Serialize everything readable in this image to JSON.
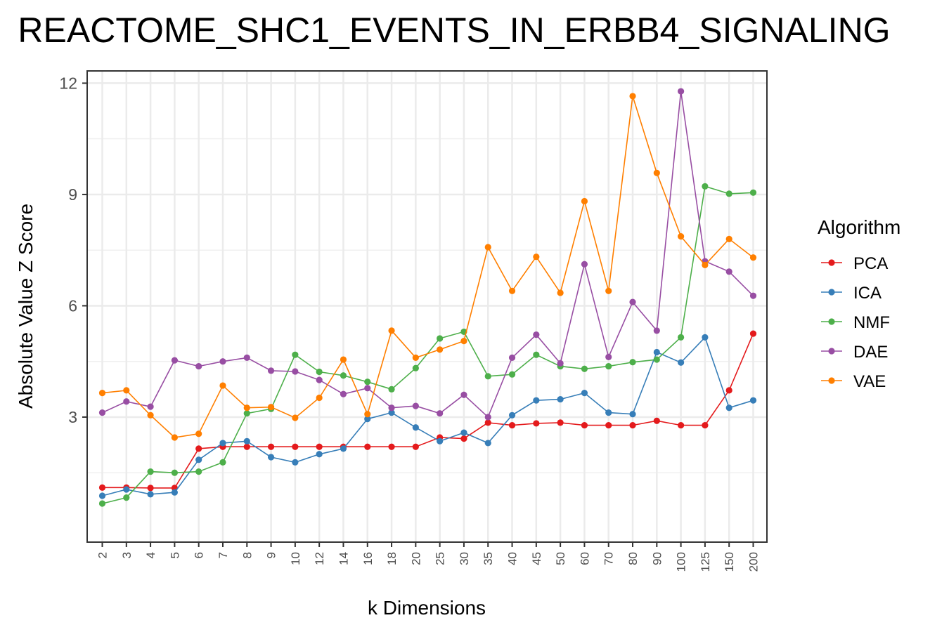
{
  "chart_data": {
    "type": "line",
    "title": "REACTOME_SHC1_EVENTS_IN_ERBB4_SIGNALING",
    "xlabel": "k Dimensions",
    "ylabel": "Absolute Value Z Score",
    "categories": [
      "2",
      "3",
      "4",
      "5",
      "6",
      "7",
      "8",
      "9",
      "10",
      "12",
      "14",
      "16",
      "18",
      "20",
      "25",
      "30",
      "35",
      "40",
      "45",
      "50",
      "60",
      "70",
      "80",
      "90",
      "100",
      "125",
      "150",
      "200"
    ],
    "ylim": [
      0,
      12.3
    ],
    "yticks": [
      3,
      6,
      9,
      12
    ],
    "grid": true,
    "legend": {
      "title": "Algorithm",
      "position": "right"
    },
    "series": [
      {
        "name": "PCA",
        "color": "#e41a1c",
        "values": [
          1.1,
          1.1,
          1.09,
          1.09,
          2.15,
          2.2,
          2.2,
          2.2,
          2.2,
          2.2,
          2.2,
          2.2,
          2.2,
          2.2,
          2.45,
          2.42,
          2.85,
          2.78,
          2.83,
          2.85,
          2.78,
          2.78,
          2.78,
          2.9,
          2.78,
          2.78,
          3.72,
          5.25
        ]
      },
      {
        "name": "ICA",
        "color": "#377eb8",
        "values": [
          0.88,
          1.05,
          0.92,
          0.97,
          1.85,
          2.3,
          2.35,
          1.92,
          1.78,
          2.0,
          2.15,
          2.95,
          3.12,
          2.72,
          2.35,
          2.58,
          2.3,
          3.05,
          3.45,
          3.48,
          3.65,
          3.12,
          3.08,
          4.75,
          4.47,
          5.15,
          3.25,
          3.45
        ]
      },
      {
        "name": "NMF",
        "color": "#4daf4a",
        "values": [
          0.67,
          0.83,
          1.53,
          1.5,
          1.53,
          1.78,
          3.1,
          3.22,
          4.68,
          4.22,
          4.12,
          3.95,
          3.75,
          4.32,
          5.12,
          5.3,
          4.1,
          4.15,
          4.68,
          4.37,
          4.3,
          4.37,
          4.48,
          4.55,
          5.15,
          9.22,
          9.02,
          9.05
        ]
      },
      {
        "name": "DAE",
        "color": "#984ea3",
        "values": [
          3.12,
          3.42,
          3.28,
          4.53,
          4.37,
          4.5,
          4.6,
          4.25,
          4.23,
          4.0,
          3.62,
          3.78,
          3.25,
          3.3,
          3.1,
          3.6,
          3.0,
          4.6,
          5.22,
          4.45,
          7.12,
          4.62,
          6.1,
          5.33,
          11.78,
          7.2,
          6.92,
          6.27
        ]
      },
      {
        "name": "VAE",
        "color": "#ff7f00",
        "values": [
          3.65,
          3.72,
          3.05,
          2.45,
          2.55,
          3.85,
          3.25,
          3.27,
          2.98,
          3.52,
          4.55,
          3.08,
          5.33,
          4.6,
          4.82,
          5.05,
          7.58,
          6.4,
          7.32,
          6.35,
          8.82,
          6.4,
          11.65,
          9.58,
          7.87,
          7.1,
          7.8,
          7.3
        ]
      }
    ]
  }
}
